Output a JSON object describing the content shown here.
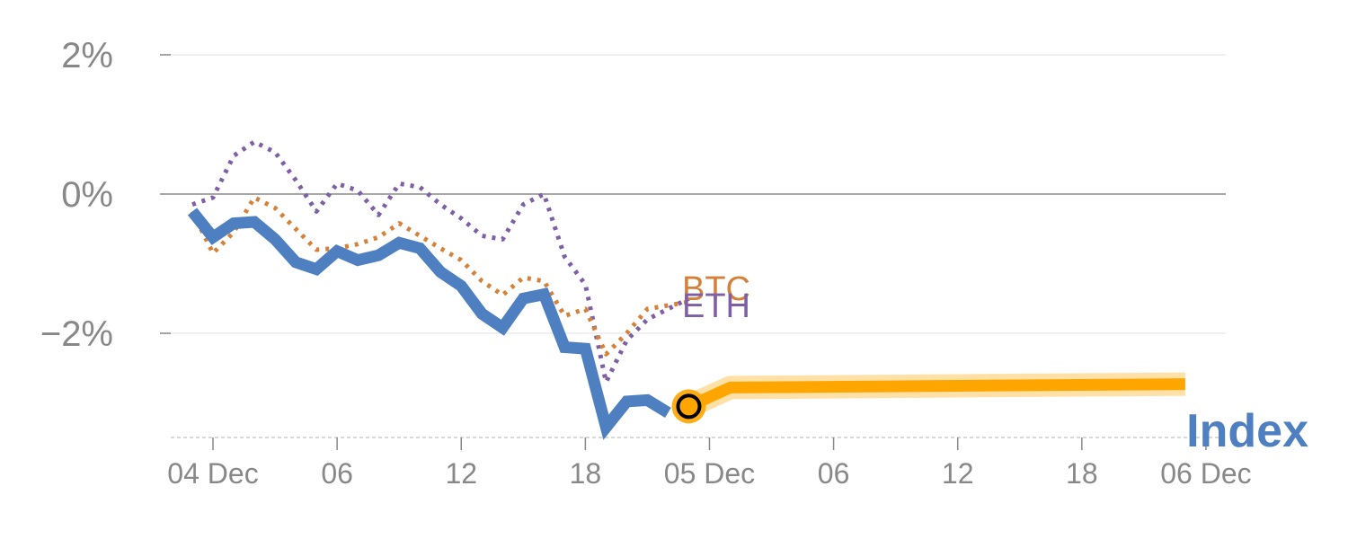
{
  "chart_data": {
    "type": "line",
    "y_unit": "%",
    "ylim": [
      -3.5,
      2.0
    ],
    "y_ticks": [
      {
        "value": 2,
        "label": "2%"
      },
      {
        "value": 0,
        "label": "0%"
      },
      {
        "value": -2,
        "label": "−2%"
      }
    ],
    "x_range_hours": [
      -1,
      47
    ],
    "x_ticks": [
      {
        "hour": 0,
        "label": "04 Dec"
      },
      {
        "hour": 6,
        "label": "06"
      },
      {
        "hour": 12,
        "label": "12"
      },
      {
        "hour": 18,
        "label": "18"
      },
      {
        "hour": 24,
        "label": "05 Dec"
      },
      {
        "hour": 30,
        "label": "06"
      },
      {
        "hour": 36,
        "label": "12"
      },
      {
        "hour": 42,
        "label": "18"
      },
      {
        "hour": 48,
        "label": "06 Dec"
      }
    ],
    "series": [
      {
        "name": "Index",
        "label": "Index",
        "color": "#4e7fc0",
        "style": "solid",
        "x": [
          -1,
          0,
          1,
          2,
          3,
          4,
          5,
          6,
          7,
          8,
          9,
          10,
          11,
          12,
          13,
          14,
          15,
          16,
          17,
          18,
          19,
          20,
          21,
          22
        ],
        "y": [
          -0.25,
          -0.62,
          -0.42,
          -0.4,
          -0.65,
          -0.98,
          -1.08,
          -0.82,
          -0.95,
          -0.88,
          -0.7,
          -0.78,
          -1.12,
          -1.32,
          -1.72,
          -1.92,
          -1.5,
          -1.44,
          -2.2,
          -2.22,
          -3.35,
          -2.98,
          -2.96,
          -3.14
        ]
      },
      {
        "name": "BTC",
        "label": "BTC",
        "color": "#d4813a",
        "style": "dotted",
        "x": [
          -1,
          0,
          1,
          2,
          3,
          4,
          5,
          6,
          7,
          8,
          9,
          10,
          11,
          12,
          13,
          14,
          15,
          16,
          17,
          18,
          19,
          20,
          21,
          22,
          23
        ],
        "y": [
          -0.25,
          -0.85,
          -0.55,
          -0.05,
          -0.2,
          -0.5,
          -0.8,
          -0.78,
          -0.72,
          -0.62,
          -0.42,
          -0.6,
          -0.78,
          -0.95,
          -1.25,
          -1.45,
          -1.2,
          -1.25,
          -1.75,
          -1.65,
          -2.3,
          -2.0,
          -1.65,
          -1.6,
          -1.55
        ]
      },
      {
        "name": "ETH",
        "label": "ETH",
        "color": "#7e5fa6",
        "style": "dotted",
        "x": [
          -1,
          0,
          1,
          2,
          3,
          4,
          5,
          6,
          7,
          8,
          9,
          10,
          11,
          12,
          13,
          14,
          15,
          16,
          17,
          18,
          19,
          20,
          21,
          22,
          23
        ],
        "y": [
          -0.15,
          -0.05,
          0.55,
          0.75,
          0.6,
          0.2,
          -0.25,
          0.15,
          0.05,
          -0.3,
          0.15,
          0.1,
          -0.15,
          -0.35,
          -0.6,
          -0.65,
          -0.15,
          0.0,
          -0.9,
          -1.3,
          -2.7,
          -2.1,
          -1.8,
          -1.65,
          -1.5
        ]
      },
      {
        "name": "Index forecast",
        "label": "",
        "color": "#ffa500",
        "style": "band",
        "x": [
          23,
          25,
          47
        ],
        "y": [
          -3.05,
          -2.78,
          -2.73
        ]
      }
    ],
    "current_point": {
      "x": 23,
      "y": -3.05
    }
  }
}
